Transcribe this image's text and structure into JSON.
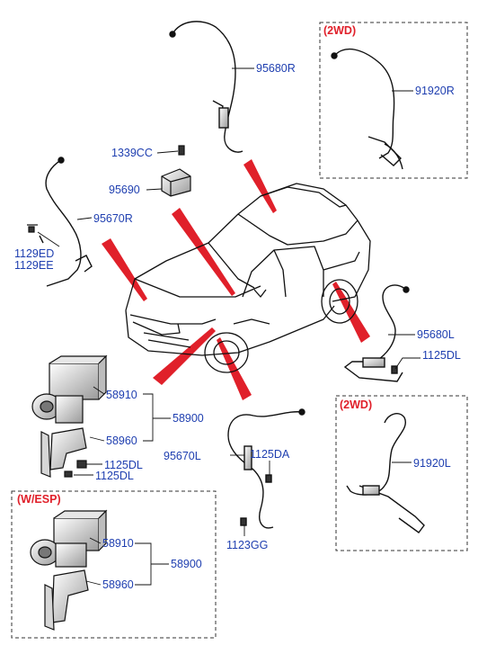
{
  "colors": {
    "label": "#1f3fb0",
    "header": "#e0202a",
    "callout": "#e0202a",
    "line": "#111111"
  },
  "headers": {
    "box_2wd_top": "(2WD)",
    "box_2wd_bottom": "(2WD)",
    "box_wesp": "(W/ESP)"
  },
  "labels": {
    "p95680R": "95680R",
    "p91920R": "91920R",
    "p1339CC": "1339CC",
    "p95690": "95690",
    "p95670R": "95670R",
    "p1129ED": "1129ED",
    "p1129EE": "1129EE",
    "p95680L": "95680L",
    "p1125DL_right": "1125DL",
    "p91920L": "91920L",
    "p58910_a": "58910",
    "p58900_a": "58900",
    "p58960_a": "58960",
    "p1125DL_a1": "1125DL",
    "p1125DL_a2": "1125DL",
    "p95670L": "95670L",
    "p1125DA": "1125DA",
    "p1123GG": "1123GG",
    "p58910_b": "58910",
    "p58900_b": "58900",
    "p58960_b": "58960"
  }
}
